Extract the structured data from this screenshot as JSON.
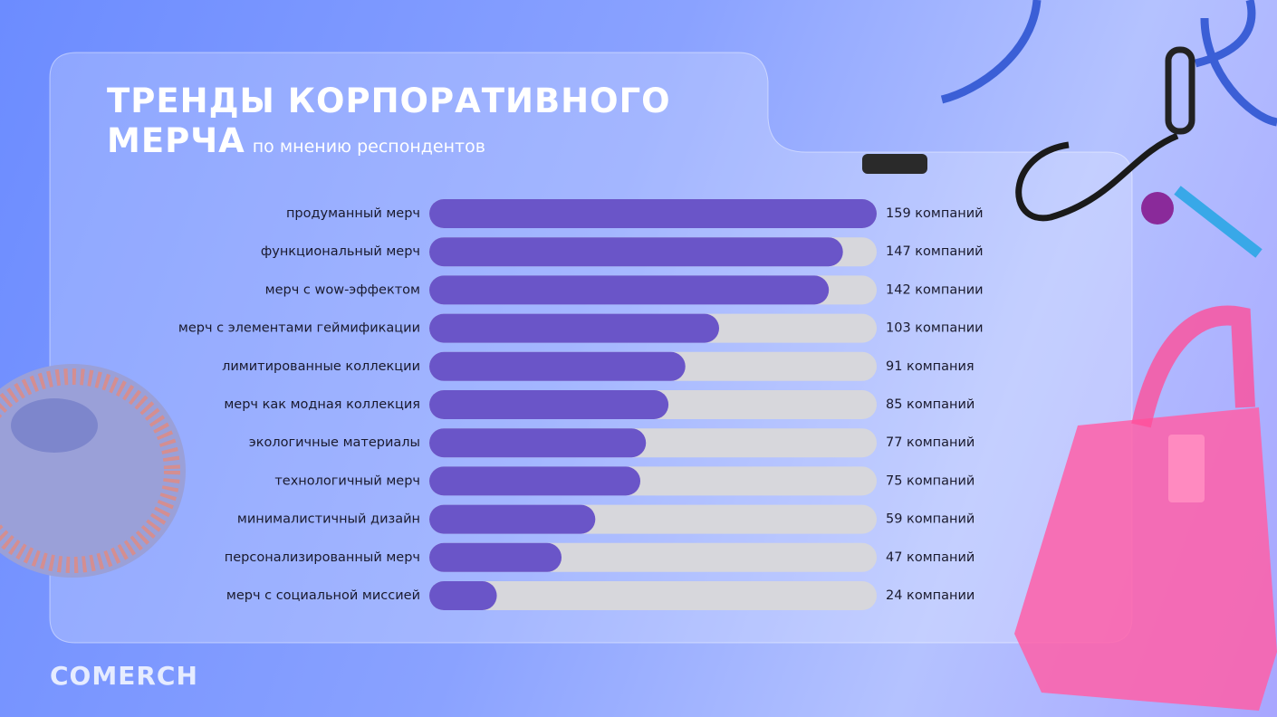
{
  "chart_data": {
    "type": "bar",
    "orientation": "horizontal",
    "title": "ТРЕНДЫ КОРПОРАТИВНОГО МЕРЧА",
    "subtitle": "по мнению респондентов",
    "categories": [
      "продуманный мерч",
      "функциональный мерч",
      "мерч с wow-эффектом",
      "мерч с элементами геймификации",
      "лимитированные коллекции",
      "мерч как модная коллекция",
      "экологичные материалы",
      "технологичный мерч",
      "минималистичный дизайн",
      "персонализированный мерч",
      "мерч с социальной миссией"
    ],
    "values": [
      159,
      147,
      142,
      103,
      91,
      85,
      77,
      75,
      59,
      47,
      24
    ],
    "value_labels": [
      "159 компаний",
      "147 компаний",
      "142 компании",
      "103 компании",
      "91 компания",
      "85 компаний",
      "77 компаний",
      "75 компаний",
      "59 компаний",
      "47 компаний",
      "24 компании"
    ],
    "color": "#6a55c8",
    "xlim": [
      0,
      159
    ]
  },
  "logo": "COMERCH"
}
